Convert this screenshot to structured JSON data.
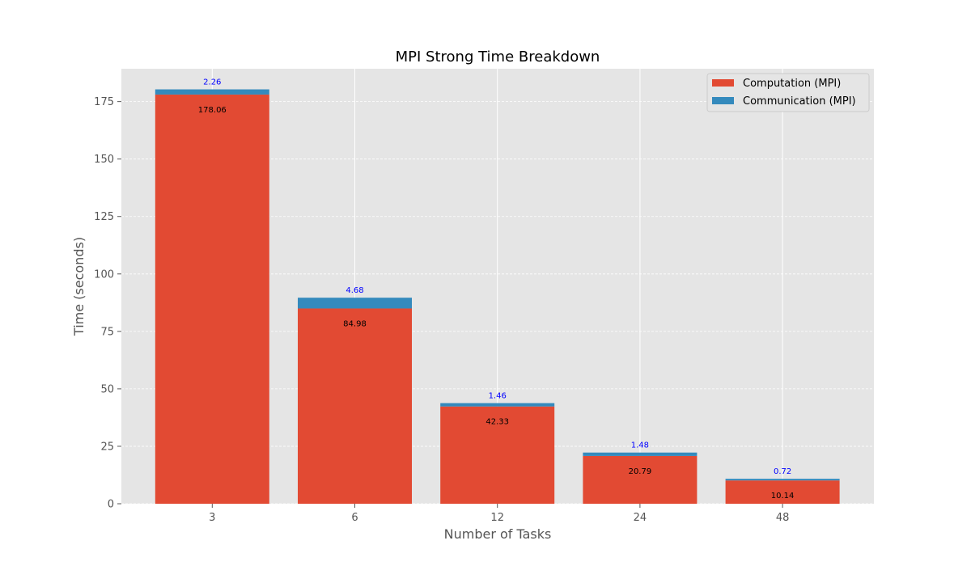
{
  "chart_data": {
    "type": "bar",
    "stacked": true,
    "title": "MPI Strong Time Breakdown",
    "xlabel": "Number of Tasks",
    "ylabel": "Time (seconds)",
    "categories": [
      "3",
      "6",
      "12",
      "24",
      "48"
    ],
    "series": [
      {
        "name": "Computation (MPI)",
        "color": "#E24A33",
        "values": [
          178.06,
          84.98,
          42.33,
          20.79,
          10.14
        ],
        "labels": [
          "178.06",
          "84.98",
          "42.33",
          "20.79",
          "10.14"
        ]
      },
      {
        "name": "Communication (MPI)",
        "color": "#348ABD",
        "values": [
          2.26,
          4.68,
          1.46,
          1.48,
          0.72
        ],
        "labels": [
          "2.26",
          "4.68",
          "1.46",
          "1.48",
          "0.72"
        ]
      }
    ],
    "yticks": [
      "0",
      "25",
      "50",
      "75",
      "100",
      "125",
      "150",
      "175"
    ],
    "ylim": [
      0,
      189.3
    ],
    "grid": true,
    "legend_position": "top-right",
    "plot_background": "#E5E5E5"
  }
}
